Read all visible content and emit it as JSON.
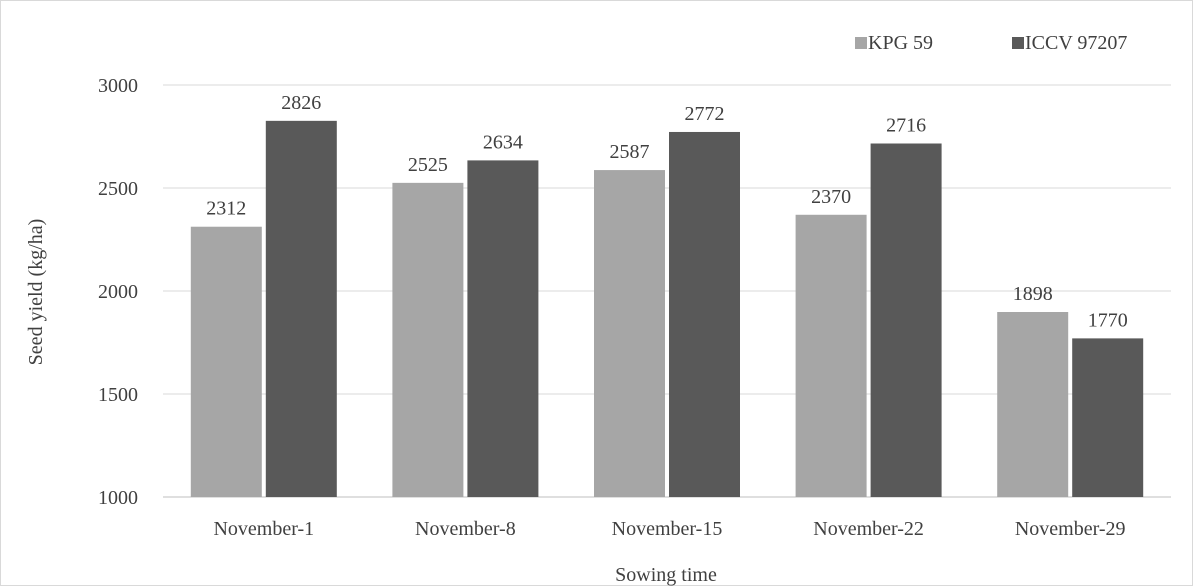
{
  "chart_data": {
    "type": "bar",
    "title": "",
    "xlabel": "Sowing time",
    "ylabel": "Seed yield (kg/ha)",
    "categories": [
      "November-1",
      "November-8",
      "November-15",
      "November-22",
      "November-29"
    ],
    "series": [
      {
        "name": "KPG 59",
        "color": "#a6a6a6",
        "values": [
          2312,
          2525,
          2587,
          2370,
          1898
        ]
      },
      {
        "name": "ICCV 97207",
        "color": "#595959",
        "values": [
          2826,
          2634,
          2772,
          2716,
          1770
        ]
      }
    ],
    "ylim": [
      1000,
      3000
    ],
    "yticks": [
      1000,
      1500,
      2000,
      2500,
      3000
    ],
    "grid": true,
    "legend_position": "top-right",
    "data_labels": true
  }
}
